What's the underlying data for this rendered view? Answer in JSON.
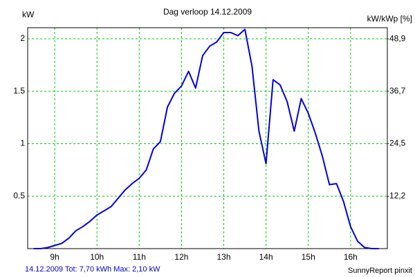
{
  "chart_data": {
    "type": "line",
    "title": "Dag  verloop 14.12.2009",
    "ylabel": "kW",
    "y2label": "kW/kWp [%]",
    "footer_left": "14.12.2009 Tot: 7,70 kWh Max: 2,10 kW",
    "footer_right": "SunnyReport pinxit",
    "x": [
      8.5,
      8.667,
      8.833,
      9,
      9.167,
      9.333,
      9.5,
      9.667,
      9.833,
      10,
      10.167,
      10.333,
      10.5,
      10.667,
      10.833,
      11,
      11.167,
      11.333,
      11.5,
      11.667,
      11.833,
      12,
      12.167,
      12.333,
      12.5,
      12.667,
      12.833,
      13,
      13.167,
      13.333,
      13.5,
      13.667,
      13.833,
      14,
      14.167,
      14.333,
      14.5,
      14.667,
      14.833,
      15,
      15.167,
      15.333,
      15.5,
      15.667,
      15.833,
      16,
      16.167,
      16.333,
      16.5,
      16.667
    ],
    "values": [
      0,
      0,
      0.01,
      0.03,
      0.05,
      0.1,
      0.17,
      0.21,
      0.26,
      0.32,
      0.36,
      0.4,
      0.48,
      0.56,
      0.62,
      0.67,
      0.75,
      0.95,
      1.02,
      1.35,
      1.48,
      1.55,
      1.69,
      1.53,
      1.84,
      1.93,
      1.97,
      2.06,
      2.06,
      2.03,
      2.09,
      1.74,
      1.12,
      0.81,
      1.61,
      1.56,
      1.4,
      1.12,
      1.43,
      1.29,
      1.1,
      0.88,
      0.61,
      0.62,
      0.45,
      0.21,
      0.07,
      0.01,
      0,
      0
    ],
    "color": "#0000dd",
    "grid": true,
    "grid_color": "#00cc00",
    "xlim": [
      8.36,
      16.87
    ],
    "xticks": [
      {
        "value": 9,
        "label": "9h"
      },
      {
        "value": 10,
        "label": "10h"
      },
      {
        "value": 11,
        "label": "11h"
      },
      {
        "value": 12,
        "label": "12h"
      },
      {
        "value": 13,
        "label": "13h"
      },
      {
        "value": 14,
        "label": "14h"
      },
      {
        "value": 15,
        "label": "15h"
      },
      {
        "value": 16,
        "label": "16h"
      }
    ],
    "ylim": [
      0,
      2.106
    ],
    "yticks": [
      0.5,
      1,
      1.5,
      2
    ],
    "y2lim": [
      0,
      51.5
    ],
    "y2ticks": [
      {
        "value": 12.2,
        "label": "12,2"
      },
      {
        "value": 24.5,
        "label": "24,5"
      },
      {
        "value": 36.7,
        "label": "36,7"
      },
      {
        "value": 48.9,
        "label": "48,9"
      }
    ]
  }
}
